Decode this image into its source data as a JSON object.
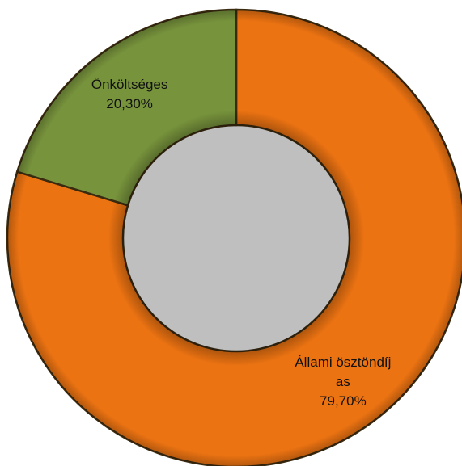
{
  "chart_data": {
    "type": "donut",
    "categories": [
      "Állami ösztöndíjas",
      "Önköltséges"
    ],
    "values": [
      79.7,
      20.3
    ],
    "value_labels": [
      "79,70%",
      "20,30%"
    ],
    "colors": [
      "#ec7312",
      "#77933c"
    ]
  }
}
